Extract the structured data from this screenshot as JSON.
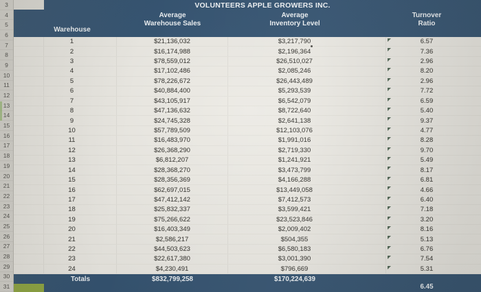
{
  "header": {
    "title": "VOLUNTEERS APPLE GROWERS INC.",
    "cols": {
      "warehouse": "Warehouse",
      "sales1": "Average",
      "sales2": "Warehouse Sales",
      "inv1": "Average",
      "inv2": "Inventory Level",
      "ratio1": "Turnover",
      "ratio2": "Ratio"
    }
  },
  "colors": {
    "header_navy": "#2f4f6e",
    "sheet": "#eceae4",
    "gutter": "#d6d4ce",
    "flag_green": "#24402a",
    "total_green_patch": "#8ea63d"
  },
  "row_numbers": [
    "3",
    "4",
    "5",
    "6",
    "7",
    "8",
    "9",
    "10",
    "11",
    "12",
    "13",
    "14",
    "15",
    "16",
    "17",
    "18",
    "19",
    "20",
    "21",
    "22",
    "23",
    "24",
    "25",
    "26",
    "27",
    "28",
    "29",
    "30",
    "31"
  ],
  "rows": [
    {
      "warehouse": "1",
      "sales": "$21,136,032",
      "inventory": "$3,217,790",
      "ratio": "6.57",
      "flag": true
    },
    {
      "warehouse": "2",
      "sales": "$16,174,988",
      "inventory": "$2,196,364",
      "ratio": "7.36",
      "flag": true
    },
    {
      "warehouse": "3",
      "sales": "$78,559,012",
      "inventory": "$26,510,027",
      "ratio": "2.96",
      "flag": true
    },
    {
      "warehouse": "4",
      "sales": "$17,102,486",
      "inventory": "$2,085,246",
      "ratio": "8.20",
      "flag": true
    },
    {
      "warehouse": "5",
      "sales": "$78,226,672",
      "inventory": "$26,443,489",
      "ratio": "2.96",
      "flag": true
    },
    {
      "warehouse": "6",
      "sales": "$40,884,400",
      "inventory": "$5,293,539",
      "ratio": "7.72",
      "flag": true
    },
    {
      "warehouse": "7",
      "sales": "$43,105,917",
      "inventory": "$6,542,079",
      "ratio": "6.59",
      "flag": true
    },
    {
      "warehouse": "8",
      "sales": "$47,136,632",
      "inventory": "$8,722,640",
      "ratio": "5.40",
      "flag": true
    },
    {
      "warehouse": "9",
      "sales": "$24,745,328",
      "inventory": "$2,641,138",
      "ratio": "9.37",
      "flag": true
    },
    {
      "warehouse": "10",
      "sales": "$57,789,509",
      "inventory": "$12,103,076",
      "ratio": "4.77",
      "flag": true
    },
    {
      "warehouse": "11",
      "sales": "$16,483,970",
      "inventory": "$1,991,016",
      "ratio": "8.28",
      "flag": true
    },
    {
      "warehouse": "12",
      "sales": "$26,368,290",
      "inventory": "$2,719,330",
      "ratio": "9.70",
      "flag": true
    },
    {
      "warehouse": "13",
      "sales": "$6,812,207",
      "inventory": "$1,241,921",
      "ratio": "5.49",
      "flag": true
    },
    {
      "warehouse": "14",
      "sales": "$28,368,270",
      "inventory": "$3,473,799",
      "ratio": "8.17",
      "flag": true
    },
    {
      "warehouse": "15",
      "sales": "$28,356,369",
      "inventory": "$4,166,288",
      "ratio": "6.81",
      "flag": true
    },
    {
      "warehouse": "16",
      "sales": "$62,697,015",
      "inventory": "$13,449,058",
      "ratio": "4.66",
      "flag": true
    },
    {
      "warehouse": "17",
      "sales": "$47,412,142",
      "inventory": "$7,412,573",
      "ratio": "6.40",
      "flag": true
    },
    {
      "warehouse": "18",
      "sales": "$25,832,337",
      "inventory": "$3,599,421",
      "ratio": "7.18",
      "flag": true
    },
    {
      "warehouse": "19",
      "sales": "$75,266,622",
      "inventory": "$23,523,846",
      "ratio": "3.20",
      "flag": true
    },
    {
      "warehouse": "20",
      "sales": "$16,403,349",
      "inventory": "$2,009,402",
      "ratio": "8.16",
      "flag": true
    },
    {
      "warehouse": "21",
      "sales": "$2,586,217",
      "inventory": "$504,355",
      "ratio": "5.13",
      "flag": true
    },
    {
      "warehouse": "22",
      "sales": "$44,503,623",
      "inventory": "$6,580,183",
      "ratio": "6.76",
      "flag": true
    },
    {
      "warehouse": "23",
      "sales": "$22,617,380",
      "inventory": "$3,001,390",
      "ratio": "7.54",
      "flag": true
    },
    {
      "warehouse": "24",
      "sales": "$4,230,491",
      "inventory": "$796,669",
      "ratio": "5.31",
      "flag": true
    }
  ],
  "totals": {
    "label": "Totals",
    "sales": "$832,799,258",
    "inventory": "$170,224,639",
    "ratio": "6.45"
  }
}
